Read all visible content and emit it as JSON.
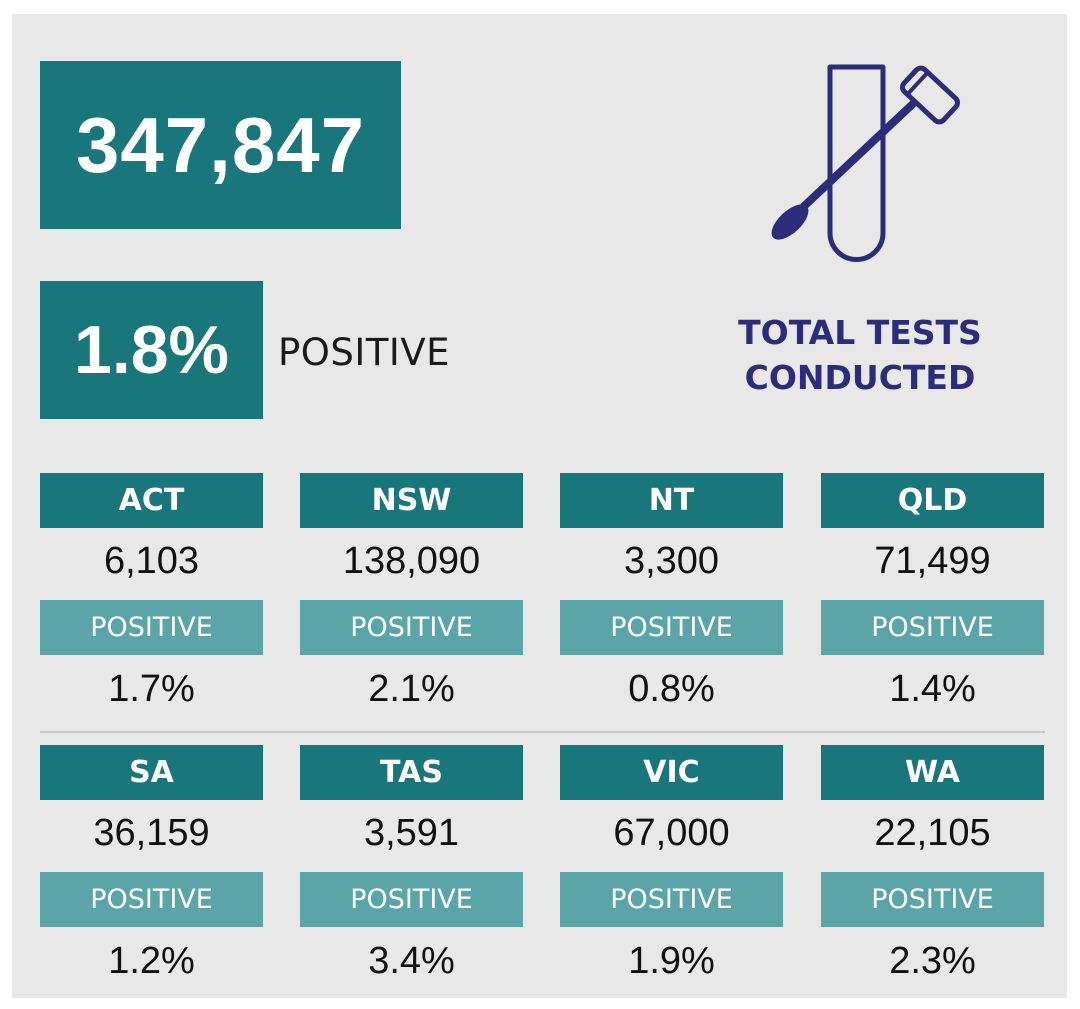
{
  "summary": {
    "total_tests": "347,847",
    "positive_rate": "1.8%",
    "positive_label": "POSITIVE"
  },
  "caption": {
    "line1": "TOTAL TESTS",
    "line2": "CONDUCTED"
  },
  "icon": "test-tube-swab-icon",
  "colors": {
    "dark_teal": "#19767a",
    "light_teal": "#5ba4a7",
    "navy": "#2c2c7a",
    "panel": "#e8e8e8"
  },
  "states": [
    {
      "name": "ACT",
      "tests": "6,103",
      "positive_label": "POSITIVE",
      "positive": "1.7%"
    },
    {
      "name": "NSW",
      "tests": "138,090",
      "positive_label": "POSITIVE",
      "positive": "2.1%"
    },
    {
      "name": "NT",
      "tests": "3,300",
      "positive_label": "POSITIVE",
      "positive": "0.8%"
    },
    {
      "name": "QLD",
      "tests": "71,499",
      "positive_label": "POSITIVE",
      "positive": "1.4%"
    },
    {
      "name": "SA",
      "tests": "36,159",
      "positive_label": "POSITIVE",
      "positive": "1.2%"
    },
    {
      "name": "TAS",
      "tests": "3,591",
      "positive_label": "POSITIVE",
      "positive": "3.4%"
    },
    {
      "name": "VIC",
      "tests": "67,000",
      "positive_label": "POSITIVE",
      "positive": "1.9%"
    },
    {
      "name": "WA",
      "tests": "22,105",
      "positive_label": "POSITIVE",
      "positive": "2.3%"
    }
  ]
}
